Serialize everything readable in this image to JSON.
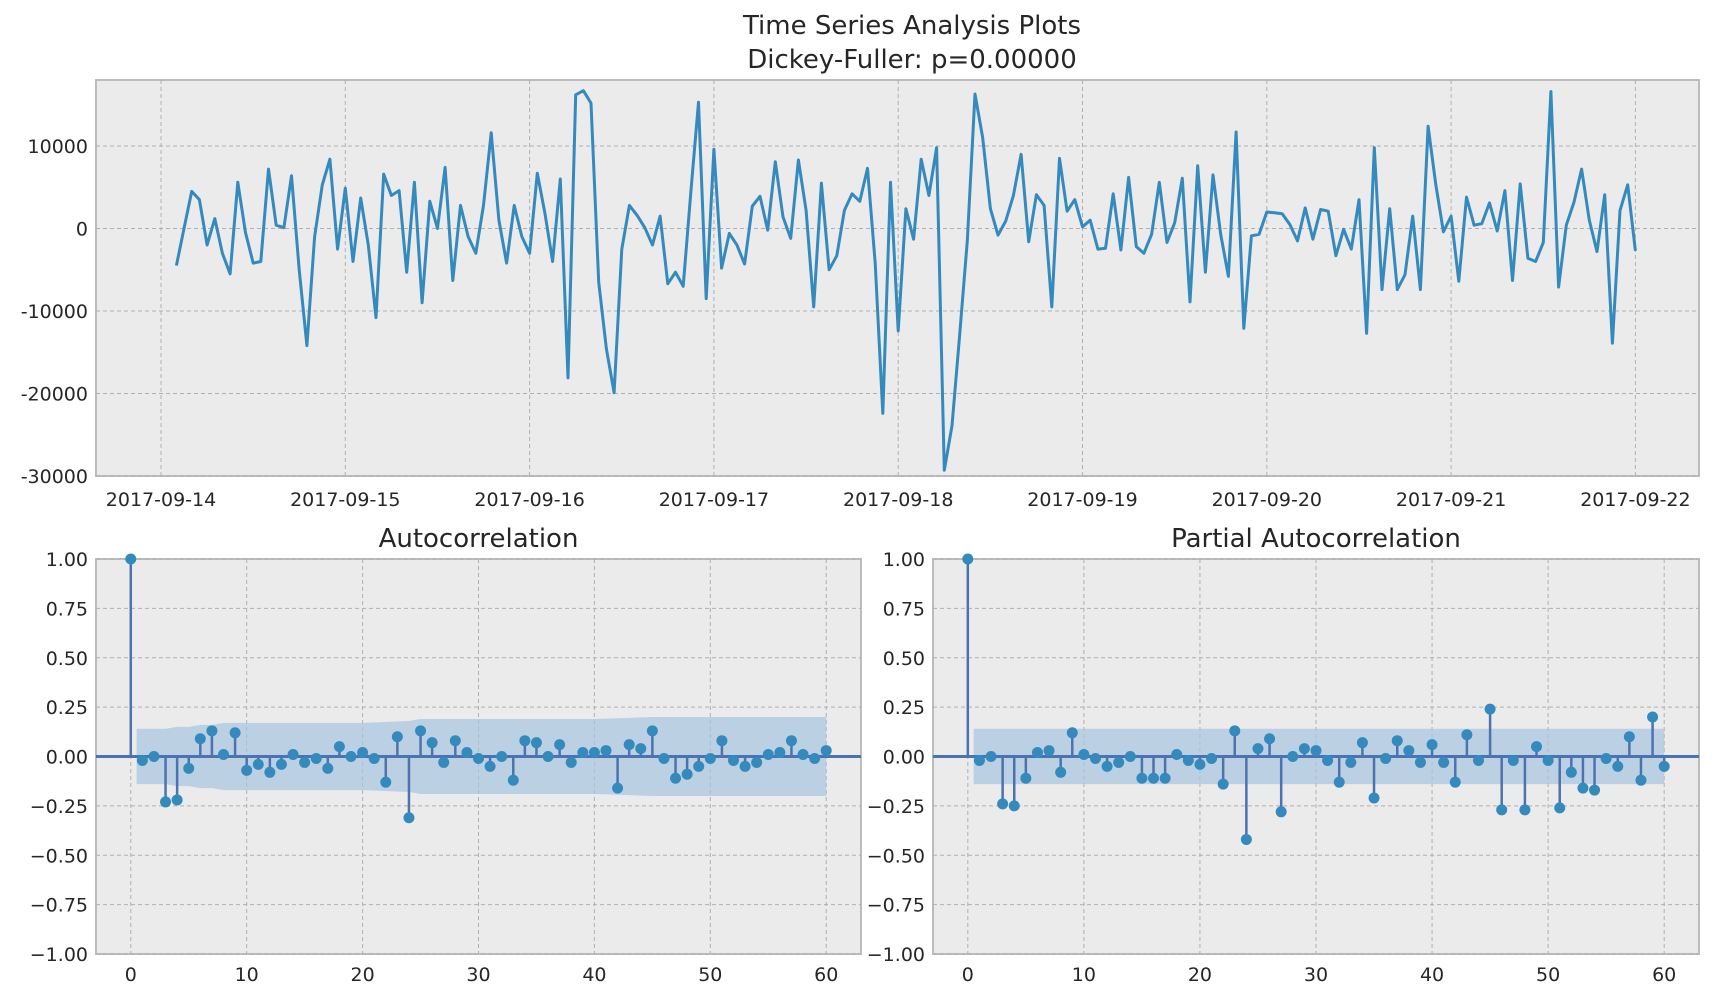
{
  "figure": {
    "title_line1": "Time Series Analysis Plots",
    "title_line2": "Dickey-Fuller: p=0.00000"
  },
  "colors": {
    "background": "#ebebeb",
    "series_line": "#348abd",
    "stem": "#4c72b0",
    "marker": "#348abd",
    "confidence_band": "#a7c6df"
  },
  "chart_data": [
    {
      "type": "line",
      "title": "",
      "xlabel": "",
      "ylabel": "",
      "x_tick_labels": [
        "2017-09-14",
        "2017-09-15",
        "2017-09-16",
        "2017-09-17",
        "2017-09-18",
        "2017-09-19",
        "2017-09-20",
        "2017-09-21",
        "2017-09-22"
      ],
      "x_start": "2017-09-14T02:00",
      "x_step_hours": 1,
      "y_ticks": [
        -30000,
        -20000,
        -10000,
        0,
        10000
      ],
      "ylim": [
        -30000,
        18000
      ],
      "grid": true,
      "series": [
        {
          "values": [
            -4500,
            0,
            4500,
            3500,
            -2000,
            1200,
            -3000,
            -5500,
            5600,
            -500,
            -4200,
            -4000,
            7200,
            400,
            100,
            6400,
            -5000,
            -14200,
            -1000,
            5300,
            8400,
            -2500,
            4900,
            -4000,
            3700,
            -2000,
            -10800,
            6600,
            4000,
            4600,
            -5300,
            5600,
            -9000,
            3300,
            0,
            7400,
            -6300,
            2800,
            -1000,
            -3000,
            2800,
            11600,
            1000,
            -4200,
            2800,
            -1000,
            -3000,
            6700,
            1800,
            -4000,
            6000,
            -18100,
            16200,
            16700,
            15200,
            -6500,
            -14600,
            -19900,
            -2500,
            2800,
            1600,
            100,
            -2000,
            1500,
            -6700,
            -5300,
            -7000,
            4500,
            15300,
            -8500,
            9600,
            -4800,
            -600,
            -2000,
            -4300,
            2700,
            3900,
            -200,
            8100,
            1400,
            -1200,
            8300,
            2200,
            -9500,
            5500,
            -5000,
            -3300,
            2200,
            4200,
            3300,
            7300,
            -4200,
            -22400,
            5600,
            -12400,
            2400,
            -1300,
            8400,
            4000,
            9800,
            -29300,
            -23900,
            -13000,
            -1500,
            16300,
            11000,
            2400,
            -800,
            900,
            4000,
            9000,
            -1600,
            4100,
            2800,
            -9500,
            8500,
            2100,
            3500,
            200,
            1000,
            -2500,
            -2400,
            4200,
            -2600,
            6200,
            -2200,
            -3000,
            -700,
            5600,
            -1700,
            700,
            6100,
            -8900,
            7600,
            -5300,
            6500,
            -700,
            -5800,
            11700,
            -12100,
            -900,
            -700,
            2000,
            1900,
            1800,
            500,
            -1500,
            2500,
            -1300,
            2300,
            2100,
            -3300,
            -100,
            -2500,
            3500,
            -12700,
            9800,
            -7400,
            2400,
            -7400,
            -5600,
            1500,
            -7400,
            12400,
            5400,
            -400,
            1500,
            -6400,
            3800,
            400,
            600,
            3100,
            -300,
            4600,
            -6300,
            5400,
            -3600,
            -4000,
            -1700,
            16600,
            -7100,
            400,
            3200,
            7200,
            1000,
            -2800,
            4100,
            -13900,
            2200,
            5300,
            -2700
          ]
        }
      ]
    },
    {
      "type": "scatter",
      "title": "Autocorrelation",
      "xlabel": "",
      "ylabel": "",
      "x_ticks": [
        0,
        10,
        20,
        30,
        40,
        50,
        60
      ],
      "y_ticks": [
        -1.0,
        -0.75,
        -0.5,
        -0.25,
        0.0,
        0.25,
        0.5,
        0.75,
        1.0
      ],
      "xlim": [
        -3,
        63
      ],
      "ylim": [
        -1,
        1
      ],
      "grid": true,
      "values": [
        1.0,
        -0.02,
        0.0,
        -0.23,
        -0.22,
        -0.06,
        0.09,
        0.13,
        0.01,
        0.12,
        -0.07,
        -0.04,
        -0.08,
        -0.04,
        0.01,
        -0.03,
        -0.01,
        -0.06,
        0.05,
        0.0,
        0.02,
        -0.01,
        -0.13,
        0.1,
        -0.31,
        0.13,
        0.07,
        -0.03,
        0.08,
        0.02,
        -0.01,
        -0.05,
        0.0,
        -0.12,
        0.08,
        0.07,
        0.0,
        0.06,
        -0.03,
        0.02,
        0.02,
        0.03,
        -0.16,
        0.06,
        0.04,
        0.13,
        -0.01,
        -0.11,
        -0.09,
        -0.05,
        -0.01,
        0.08,
        -0.02,
        -0.05,
        -0.03,
        0.01,
        0.02,
        0.08,
        0.01,
        -0.01,
        0.03
      ],
      "confidence_band": {
        "lags": [
          0,
          1,
          2,
          3,
          4,
          5,
          6,
          7,
          8,
          10,
          20,
          24,
          25,
          30,
          40,
          45,
          50,
          60
        ],
        "upper": [
          0.14,
          0.14,
          0.14,
          0.14,
          0.15,
          0.15,
          0.16,
          0.16,
          0.17,
          0.17,
          0.17,
          0.18,
          0.19,
          0.19,
          0.19,
          0.2,
          0.2,
          0.2
        ]
      }
    },
    {
      "type": "scatter",
      "title": "Partial Autocorrelation",
      "xlabel": "",
      "ylabel": "",
      "x_ticks": [
        0,
        10,
        20,
        30,
        40,
        50,
        60
      ],
      "y_ticks": [
        -1.0,
        -0.75,
        -0.5,
        -0.25,
        0.0,
        0.25,
        0.5,
        0.75,
        1.0
      ],
      "xlim": [
        -3,
        63
      ],
      "ylim": [
        -1,
        1
      ],
      "grid": true,
      "values": [
        1.0,
        -0.02,
        0.0,
        -0.24,
        -0.25,
        -0.11,
        0.02,
        0.03,
        -0.08,
        0.12,
        0.01,
        -0.01,
        -0.05,
        -0.03,
        0.0,
        -0.11,
        -0.11,
        -0.11,
        0.01,
        -0.02,
        -0.04,
        -0.01,
        -0.14,
        0.13,
        -0.42,
        0.04,
        0.09,
        -0.28,
        0.0,
        0.04,
        0.03,
        -0.02,
        -0.13,
        -0.03,
        0.07,
        -0.21,
        -0.01,
        0.08,
        0.03,
        -0.03,
        0.06,
        -0.03,
        -0.13,
        0.11,
        -0.02,
        0.24,
        -0.27,
        -0.02,
        -0.27,
        0.05,
        -0.02,
        -0.26,
        -0.08,
        -0.16,
        -0.17,
        -0.01,
        -0.05,
        0.1,
        -0.12,
        0.2,
        -0.05
      ],
      "confidence_band": {
        "lags": [
          0,
          60
        ],
        "upper": [
          0.14,
          0.14
        ]
      }
    }
  ]
}
